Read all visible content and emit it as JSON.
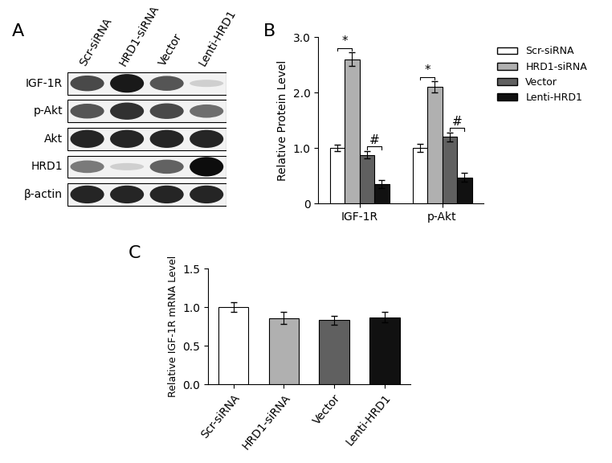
{
  "chart_data": [
    {
      "type": "blot",
      "panel": "A",
      "lanes": [
        "Scr-siRNA",
        "HRD1-siRNA",
        "Vector",
        "Lenti-HRD1"
      ],
      "rows": [
        {
          "name": "IGF-1R",
          "values": [
            0.75,
            0.95,
            0.7,
            0.2
          ]
        },
        {
          "name": "p-Akt",
          "values": [
            0.7,
            0.85,
            0.75,
            0.6
          ]
        },
        {
          "name": "Akt",
          "values": [
            0.9,
            0.9,
            0.9,
            0.9
          ]
        },
        {
          "name": "HRD1",
          "values": [
            0.55,
            0.2,
            0.65,
            1.0
          ]
        },
        {
          "name": "β-actin",
          "values": [
            0.9,
            0.9,
            0.9,
            0.9
          ]
        }
      ]
    },
    {
      "type": "bar",
      "panel": "B",
      "categories": [
        "IGF-1R",
        "p-Akt"
      ],
      "series": [
        {
          "name": "Scr-siRNA",
          "color": "#ffffff",
          "values": [
            1.0,
            1.0
          ],
          "errors": [
            0.06,
            0.07
          ]
        },
        {
          "name": "HRD1-siRNA",
          "color": "#b0b0b0",
          "values": [
            2.6,
            2.1
          ],
          "errors": [
            0.12,
            0.1
          ]
        },
        {
          "name": "Vector",
          "color": "#606060",
          "values": [
            0.88,
            1.2
          ],
          "errors": [
            0.07,
            0.08
          ]
        },
        {
          "name": "Lenti-HRD1",
          "color": "#111111",
          "values": [
            0.35,
            0.47
          ],
          "errors": [
            0.07,
            0.08
          ]
        }
      ],
      "ylabel": "Relative Protein Level",
      "ylim": [
        0,
        3.0
      ],
      "yticks": [
        0,
        {
          "value": 1.0,
          "label": "1.0"
        },
        {
          "value": 2.0,
          "label": "2.0"
        },
        {
          "value": 3.0,
          "label": "3.0"
        }
      ],
      "legend": "upper left",
      "annotations": [
        {
          "category": "IGF-1R",
          "series": [
            "Scr-siRNA",
            "HRD1-siRNA"
          ],
          "label": "*"
        },
        {
          "category": "IGF-1R",
          "series": [
            "Vector",
            "Lenti-HRD1"
          ],
          "label": "#"
        },
        {
          "category": "p-Akt",
          "series": [
            "Scr-siRNA",
            "HRD1-siRNA"
          ],
          "label": "*"
        },
        {
          "category": "p-Akt",
          "series": [
            "Vector",
            "Lenti-HRD1"
          ],
          "label": "#"
        }
      ]
    },
    {
      "type": "bar",
      "panel": "C",
      "categories": [
        "Scr-siRNA",
        "HRD1-siRNA",
        "Vector",
        "Lenti-HRD1"
      ],
      "values": [
        1.0,
        0.86,
        0.83,
        0.87
      ],
      "errors": [
        0.06,
        0.08,
        0.06,
        0.07
      ],
      "colors": [
        "#ffffff",
        "#b0b0b0",
        "#606060",
        "#111111"
      ],
      "ylabel": "Relative IGF-1R mRNA Level",
      "ylim": [
        0,
        1.5
      ],
      "yticks": [
        {
          "value": 0,
          "label": "0.0"
        },
        {
          "value": 0.5,
          "label": "0.5"
        },
        {
          "value": 1.0,
          "label": "1.0"
        },
        {
          "value": 1.5,
          "label": "1.5"
        }
      ]
    }
  ]
}
